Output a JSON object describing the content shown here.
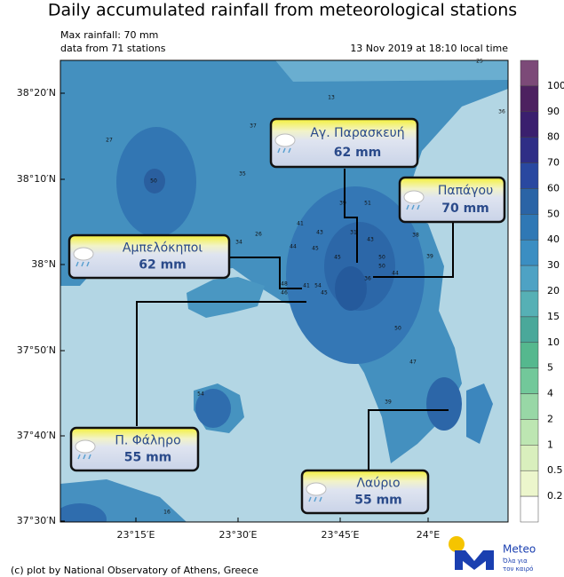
{
  "title": "Daily accumulated rainfall from meteorological stations",
  "info": {
    "max": "Max rainfall: 70 mm",
    "stations": "data from 71 stations",
    "time": "13 Nov 2019 at 18:10 local time"
  },
  "lat_labels": [
    "38°20′N",
    "38°10′N",
    "38°N",
    "37°50′N",
    "37°40′N",
    "37°30′N"
  ],
  "lon_labels": [
    "23°15′E",
    "23°30′E",
    "23°45′E",
    "24°E"
  ],
  "colorbar": {
    "ticks": [
      100,
      90,
      80,
      70,
      60,
      50,
      40,
      30,
      20,
      15,
      10,
      5,
      4,
      2,
      1,
      0.5,
      0.2
    ],
    "colors": [
      "#7c4a78",
      "#4d2160",
      "#3a1f6e",
      "#2f2e86",
      "#2948a0",
      "#2a64a6",
      "#2f78b5",
      "#3b8ec2",
      "#4ea2c4",
      "#56b0b5",
      "#4aa89a",
      "#55b88e",
      "#72c89a",
      "#98d7a6",
      "#bde6b2",
      "#d9efbd",
      "#ecf6cc",
      "#ffffff"
    ]
  },
  "callouts": [
    {
      "name": "Αγ. Παρασκευή",
      "rain": "62 mm"
    },
    {
      "name": "Παπάγου",
      "rain": "70 mm"
    },
    {
      "name": "Αμπελόκηποι",
      "rain": "62 mm"
    },
    {
      "name": "Π. Φάληρο",
      "rain": "55 mm"
    },
    {
      "name": "Λαύριο",
      "rain": "55 mm"
    }
  ],
  "stations": [
    "25",
    "13",
    "36",
    "27",
    "37",
    "35",
    "50",
    "39",
    "51",
    "41",
    "43",
    "44",
    "26",
    "34",
    "31",
    "43",
    "38",
    "39",
    "50",
    "50",
    "44",
    "36",
    "45",
    "48",
    "46",
    "41",
    "54",
    "45",
    "50",
    "47",
    "39",
    "54",
    "16",
    "45"
  ],
  "credit": "(c) plot by National Observatory of Athens, Greece",
  "logo": {
    "name": "Meteo",
    "tagline_1": "Όλα για",
    "tagline_2": "τον καιρό"
  }
}
